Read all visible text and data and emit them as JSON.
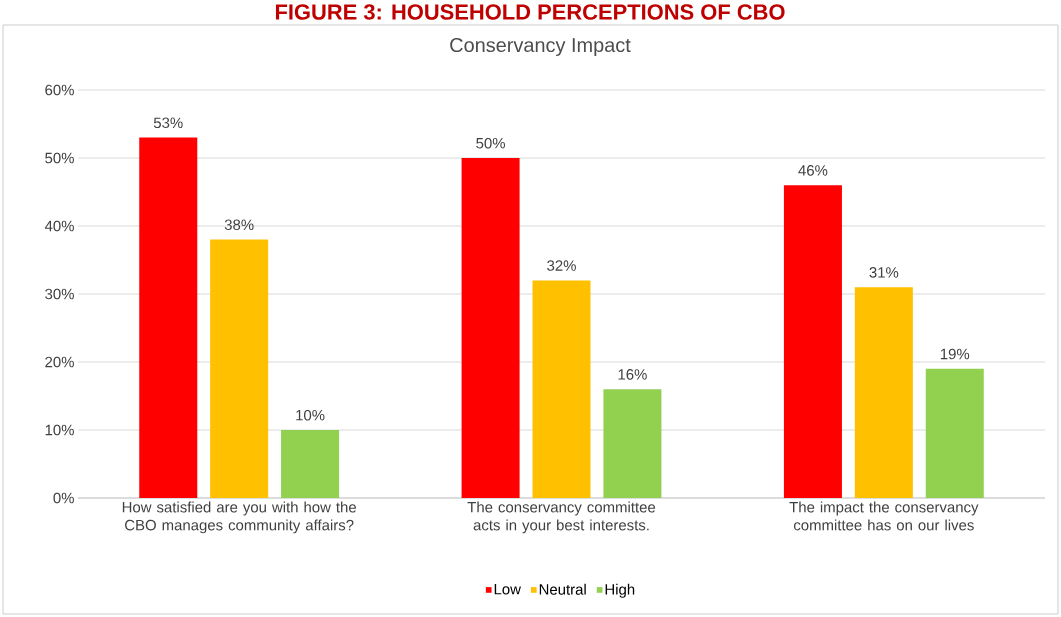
{
  "chart_data": {
    "type": "bar",
    "title": "Conservancy Impact",
    "annotations": [
      "FIGURE 3: HOUSEHOLD PERCEPTIONS OF CBO"
    ],
    "categories": [
      "How satisfied are you with how the CBO manages community affairs?",
      "The conservancy committee acts in your best interests.",
      "The impact the conservancy committee has on our lives"
    ],
    "series": [
      {
        "name": "Low",
        "color": "#ff0000",
        "values": [
          53,
          50,
          46
        ],
        "value_labels": [
          "53%",
          "50%",
          "46%"
        ]
      },
      {
        "name": "Neutral",
        "color": "#ffc000",
        "values": [
          38,
          32,
          31
        ],
        "value_labels": [
          "38%",
          "32%",
          "31%"
        ]
      },
      {
        "name": "High",
        "color": "#92d050",
        "values": [
          10,
          16,
          19
        ],
        "value_labels": [
          "10%",
          "16%",
          "19%"
        ]
      }
    ],
    "ylim": [
      0,
      60
    ],
    "yticks": [
      {
        "value": 0,
        "label": "0%"
      },
      {
        "value": 10,
        "label": "10%"
      },
      {
        "value": 20,
        "label": "20%"
      },
      {
        "value": 30,
        "label": "30%"
      },
      {
        "value": 40,
        "label": "40%"
      },
      {
        "value": 50,
        "label": "50%"
      },
      {
        "value": 60,
        "label": "60%"
      }
    ],
    "grid": "y",
    "legend": "bottom"
  }
}
